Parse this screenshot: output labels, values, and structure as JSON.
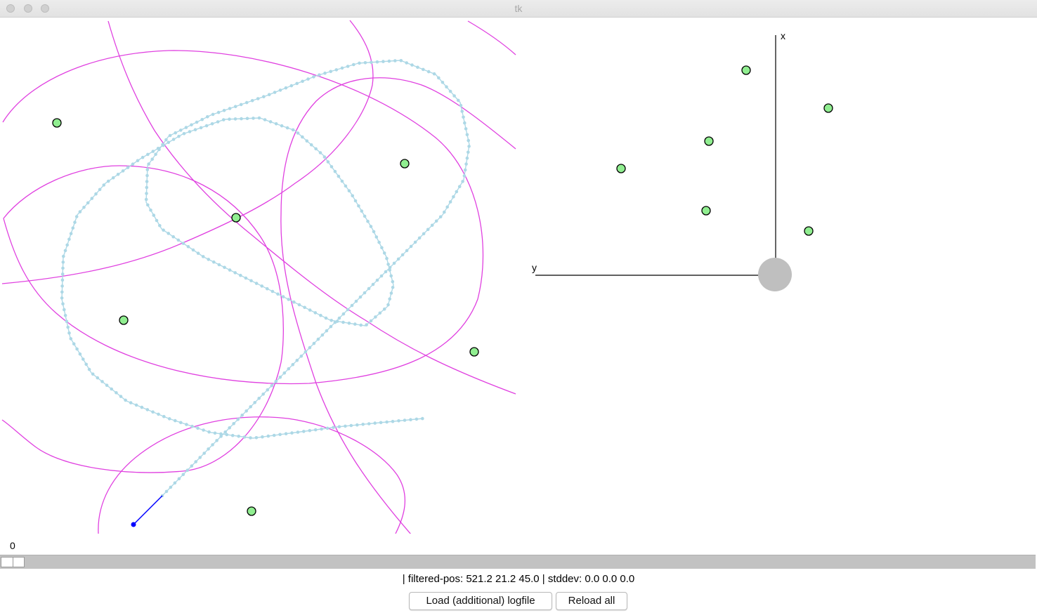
{
  "window": {
    "title": "tk"
  },
  "map_view": {
    "trajectory_color": "#add8e6",
    "particle_curve_color": "#e040e0",
    "landmark_fill": "#90ee90",
    "current_segment_color": "#0000ff"
  },
  "robot_view": {
    "x_axis_label": "x",
    "y_axis_label": "y",
    "robot_color": "#bfbfbf",
    "landmark_fill": "#90ee90"
  },
  "scale": {
    "value": "0",
    "position_fraction": 0
  },
  "status": {
    "text": "| filtered-pos: 521.2 21.2 45.0 | stddev: 0.0 0.0 0.0"
  },
  "buttons": {
    "load_label": "Load (additional) logfile",
    "reload_label": "Reload all"
  }
}
